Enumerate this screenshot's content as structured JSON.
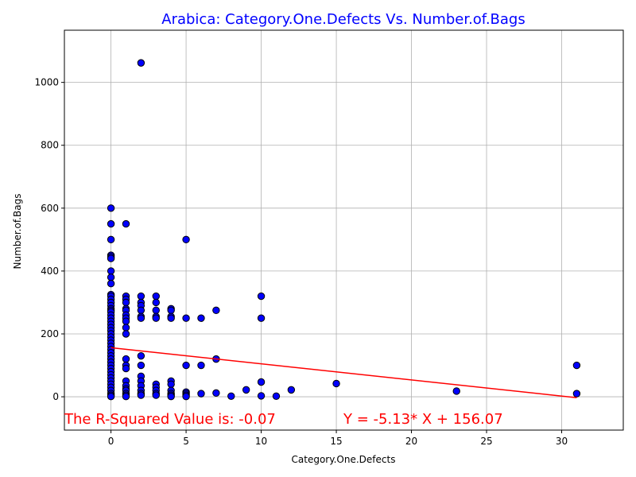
{
  "chart_data": {
    "type": "scatter",
    "title": "Arabica: Category.One.Defects Vs. Number.of.Bags",
    "xlabel": "Category.One.Defects",
    "ylabel": "Number.of.Bags",
    "xlim": [
      -3.1,
      34.1
    ],
    "ylim": [
      -106,
      1166
    ],
    "xticks": [
      0,
      5,
      10,
      15,
      20,
      25,
      30
    ],
    "yticks": [
      0,
      200,
      400,
      600,
      800,
      1000
    ],
    "grid": true,
    "title_color": "#0000ff",
    "marker_color": "#0000ff",
    "marker_edge_color": "#000000",
    "line_color": "#ff0000",
    "annotation_color": "#ff0000",
    "points": [
      [
        0,
        600
      ],
      [
        0,
        550
      ],
      [
        0,
        500
      ],
      [
        0,
        450
      ],
      [
        0,
        445
      ],
      [
        0,
        440
      ],
      [
        0,
        400
      ],
      [
        0,
        380
      ],
      [
        0,
        360
      ],
      [
        0,
        325
      ],
      [
        0,
        320
      ],
      [
        0,
        310
      ],
      [
        0,
        300
      ],
      [
        0,
        290
      ],
      [
        0,
        280
      ],
      [
        0,
        275
      ],
      [
        0,
        270
      ],
      [
        0,
        260
      ],
      [
        0,
        250
      ],
      [
        0,
        240
      ],
      [
        0,
        230
      ],
      [
        0,
        220
      ],
      [
        0,
        210
      ],
      [
        0,
        200
      ],
      [
        0,
        190
      ],
      [
        0,
        180
      ],
      [
        0,
        170
      ],
      [
        0,
        160
      ],
      [
        0,
        150
      ],
      [
        0,
        140
      ],
      [
        0,
        130
      ],
      [
        0,
        120
      ],
      [
        0,
        110
      ],
      [
        0,
        100
      ],
      [
        0,
        90
      ],
      [
        0,
        80
      ],
      [
        0,
        70
      ],
      [
        0,
        60
      ],
      [
        0,
        50
      ],
      [
        0,
        40
      ],
      [
        0,
        30
      ],
      [
        0,
        20
      ],
      [
        0,
        10
      ],
      [
        0,
        5
      ],
      [
        0,
        1
      ],
      [
        1,
        550
      ],
      [
        1,
        320
      ],
      [
        1,
        310
      ],
      [
        1,
        300
      ],
      [
        1,
        280
      ],
      [
        1,
        275
      ],
      [
        1,
        260
      ],
      [
        1,
        250
      ],
      [
        1,
        240
      ],
      [
        1,
        220
      ],
      [
        1,
        200
      ],
      [
        1,
        120
      ],
      [
        1,
        100
      ],
      [
        1,
        90
      ],
      [
        1,
        50
      ],
      [
        1,
        35
      ],
      [
        1,
        25
      ],
      [
        1,
        20
      ],
      [
        1,
        10
      ],
      [
        1,
        5
      ],
      [
        1,
        1
      ],
      [
        2,
        1062
      ],
      [
        2,
        320
      ],
      [
        2,
        300
      ],
      [
        2,
        290
      ],
      [
        2,
        275
      ],
      [
        2,
        255
      ],
      [
        2,
        250
      ],
      [
        2,
        130
      ],
      [
        2,
        100
      ],
      [
        2,
        65
      ],
      [
        2,
        50
      ],
      [
        2,
        35
      ],
      [
        2,
        20
      ],
      [
        2,
        10
      ],
      [
        2,
        5
      ],
      [
        3,
        320
      ],
      [
        3,
        300
      ],
      [
        3,
        275
      ],
      [
        3,
        255
      ],
      [
        3,
        250
      ],
      [
        3,
        40
      ],
      [
        3,
        30
      ],
      [
        3,
        20
      ],
      [
        3,
        10
      ],
      [
        3,
        5
      ],
      [
        4,
        280
      ],
      [
        4,
        275
      ],
      [
        4,
        255
      ],
      [
        4,
        250
      ],
      [
        4,
        50
      ],
      [
        4,
        40
      ],
      [
        4,
        20
      ],
      [
        4,
        10
      ],
      [
        4,
        5
      ],
      [
        4,
        1
      ],
      [
        5,
        500
      ],
      [
        5,
        250
      ],
      [
        5,
        100
      ],
      [
        5,
        15
      ],
      [
        5,
        10
      ],
      [
        5,
        5
      ],
      [
        5,
        1
      ],
      [
        6,
        250
      ],
      [
        6,
        100
      ],
      [
        6,
        10
      ],
      [
        7,
        275
      ],
      [
        7,
        120
      ],
      [
        7,
        12
      ],
      [
        8,
        2
      ],
      [
        9,
        22
      ],
      [
        10,
        320
      ],
      [
        10,
        250
      ],
      [
        10,
        47
      ],
      [
        10,
        3
      ],
      [
        11,
        2
      ],
      [
        12,
        22
      ],
      [
        15,
        42
      ],
      [
        23,
        18
      ],
      [
        31,
        100
      ],
      [
        31,
        10
      ]
    ],
    "regression": {
      "slope": -5.13,
      "intercept": 156.07,
      "x_range": [
        0,
        31
      ]
    },
    "annotations": {
      "r_squared": "The R-Squared Value is: -0.07",
      "equation": "Y = -5.13* X + 156.07"
    }
  }
}
